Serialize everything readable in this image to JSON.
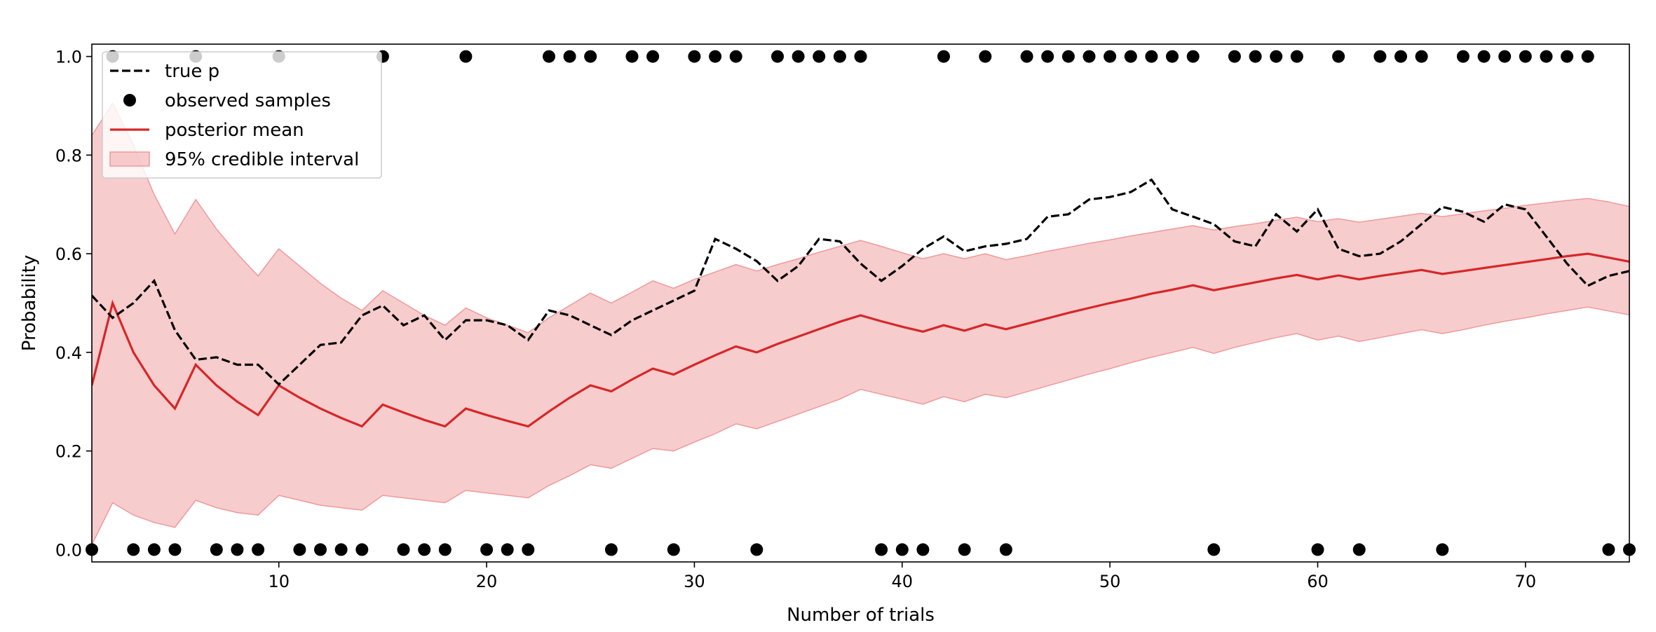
{
  "chart_data": {
    "type": "line",
    "title": "",
    "xlabel": "Number of trials",
    "ylabel": "Probability",
    "xlim": [
      1,
      75
    ],
    "ylim": [
      -0.025,
      1.025
    ],
    "grid": false,
    "legend_placement": "top-left",
    "x_ticks": [
      10,
      20,
      30,
      40,
      50,
      60,
      70
    ],
    "y_ticks": [
      0.0,
      0.2,
      0.4,
      0.6,
      0.8,
      1.0
    ],
    "x_tick_labels": [
      "10",
      "20",
      "30",
      "40",
      "50",
      "60",
      "70"
    ],
    "y_tick_labels": [
      "0.0",
      "0.2",
      "0.4",
      "0.6",
      "0.8",
      "1.0"
    ],
    "legend": [
      {
        "label": "true p",
        "style": "dashed-line",
        "color": "#000000"
      },
      {
        "label": "observed samples",
        "style": "marker",
        "color": "#000000"
      },
      {
        "label": "posterior mean",
        "style": "line",
        "color": "#d62728"
      },
      {
        "label": "95% credible interval",
        "style": "band",
        "color": "#f4b6b8"
      }
    ],
    "series": [
      {
        "name": "true p",
        "color": "#000000",
        "x": [
          1,
          2,
          3,
          4,
          5,
          6,
          7,
          8,
          9,
          10,
          11,
          12,
          13,
          14,
          15,
          16,
          17,
          18,
          19,
          20,
          21,
          22,
          23,
          24,
          25,
          26,
          27,
          28,
          29,
          30,
          31,
          32,
          33,
          34,
          35,
          36,
          37,
          38,
          39,
          40,
          41,
          42,
          43,
          44,
          45,
          46,
          47,
          48,
          49,
          50,
          51,
          52,
          53,
          54,
          55,
          56,
          57,
          58,
          59,
          60,
          61,
          62,
          63,
          64,
          65,
          66,
          67,
          68,
          69,
          70,
          71,
          72,
          73,
          74,
          75
        ],
        "values": [
          0.515,
          0.47,
          0.5,
          0.545,
          0.445,
          0.385,
          0.39,
          0.375,
          0.375,
          0.335,
          0.375,
          0.415,
          0.42,
          0.475,
          0.495,
          0.455,
          0.475,
          0.425,
          0.465,
          0.465,
          0.455,
          0.425,
          0.485,
          0.475,
          0.455,
          0.435,
          0.465,
          0.485,
          0.505,
          0.525,
          0.63,
          0.61,
          0.585,
          0.545,
          0.575,
          0.63,
          0.625,
          0.58,
          0.545,
          0.575,
          0.61,
          0.635,
          0.605,
          0.615,
          0.62,
          0.63,
          0.675,
          0.68,
          0.71,
          0.715,
          0.725,
          0.75,
          0.69,
          0.675,
          0.66,
          0.625,
          0.615,
          0.68,
          0.645,
          0.69,
          0.61,
          0.595,
          0.6,
          0.625,
          0.66,
          0.695,
          0.685,
          0.665,
          0.7,
          0.69,
          0.635,
          0.58,
          0.535,
          0.555,
          0.565
        ]
      },
      {
        "name": "posterior mean",
        "color": "#d62728",
        "x": [
          1,
          2,
          3,
          4,
          5,
          6,
          7,
          8,
          9,
          10,
          11,
          12,
          13,
          14,
          15,
          16,
          17,
          18,
          19,
          20,
          21,
          22,
          23,
          24,
          25,
          26,
          27,
          28,
          29,
          30,
          31,
          32,
          33,
          34,
          35,
          36,
          37,
          38,
          39,
          40,
          41,
          42,
          43,
          44,
          45,
          46,
          47,
          48,
          49,
          50,
          51,
          52,
          53,
          54,
          55,
          56,
          57,
          58,
          59,
          60,
          61,
          62,
          63,
          64,
          65,
          66,
          67,
          68,
          69,
          70,
          71,
          72,
          73,
          74,
          75
        ],
        "values": [
          0.333,
          0.5,
          0.4,
          0.333,
          0.286,
          0.375,
          0.333,
          0.3,
          0.273,
          0.333,
          0.308,
          0.286,
          0.267,
          0.25,
          0.294,
          0.278,
          0.263,
          0.25,
          0.286,
          0.273,
          0.261,
          0.25,
          0.28,
          0.308,
          0.333,
          0.321,
          0.345,
          0.367,
          0.355,
          0.375,
          0.394,
          0.412,
          0.4,
          0.417,
          0.432,
          0.447,
          0.462,
          0.475,
          0.463,
          0.452,
          0.442,
          0.455,
          0.444,
          0.457,
          0.447,
          0.458,
          0.469,
          0.48,
          0.49,
          0.5,
          0.509,
          0.519,
          0.527,
          0.536,
          0.526,
          0.534,
          0.542,
          0.55,
          0.557,
          0.548,
          0.556,
          0.548,
          0.555,
          0.561,
          0.567,
          0.559,
          0.565,
          0.571,
          0.577,
          0.583,
          0.589,
          0.595,
          0.6,
          0.592,
          0.584
        ]
      },
      {
        "name": "95% credible interval",
        "color": "#f4b6b8",
        "x": [
          1,
          2,
          3,
          4,
          5,
          6,
          7,
          8,
          9,
          10,
          11,
          12,
          13,
          14,
          15,
          16,
          17,
          18,
          19,
          20,
          21,
          22,
          23,
          24,
          25,
          26,
          27,
          28,
          29,
          30,
          31,
          32,
          33,
          34,
          35,
          36,
          37,
          38,
          39,
          40,
          41,
          42,
          43,
          44,
          45,
          46,
          47,
          48,
          49,
          50,
          51,
          52,
          53,
          54,
          55,
          56,
          57,
          58,
          59,
          60,
          61,
          62,
          63,
          64,
          65,
          66,
          67,
          68,
          69,
          70,
          71,
          72,
          73,
          74,
          75
        ],
        "lower": [
          0.01,
          0.095,
          0.07,
          0.055,
          0.045,
          0.1,
          0.085,
          0.075,
          0.07,
          0.11,
          0.1,
          0.09,
          0.085,
          0.08,
          0.11,
          0.105,
          0.1,
          0.095,
          0.12,
          0.115,
          0.11,
          0.105,
          0.13,
          0.15,
          0.172,
          0.165,
          0.185,
          0.205,
          0.2,
          0.218,
          0.235,
          0.255,
          0.245,
          0.26,
          0.275,
          0.29,
          0.305,
          0.325,
          0.315,
          0.305,
          0.295,
          0.31,
          0.3,
          0.315,
          0.308,
          0.32,
          0.332,
          0.344,
          0.356,
          0.367,
          0.379,
          0.39,
          0.4,
          0.41,
          0.398,
          0.41,
          0.42,
          0.43,
          0.438,
          0.425,
          0.433,
          0.422,
          0.43,
          0.438,
          0.446,
          0.438,
          0.446,
          0.455,
          0.463,
          0.47,
          0.478,
          0.485,
          0.492,
          0.484,
          0.476
        ],
        "upper": [
          0.84,
          0.905,
          0.82,
          0.72,
          0.64,
          0.71,
          0.65,
          0.6,
          0.555,
          0.61,
          0.575,
          0.54,
          0.51,
          0.485,
          0.525,
          0.5,
          0.475,
          0.455,
          0.49,
          0.47,
          0.455,
          0.44,
          0.47,
          0.495,
          0.52,
          0.5,
          0.522,
          0.545,
          0.53,
          0.548,
          0.563,
          0.578,
          0.565,
          0.578,
          0.59,
          0.603,
          0.615,
          0.627,
          0.615,
          0.602,
          0.59,
          0.6,
          0.59,
          0.6,
          0.588,
          0.596,
          0.605,
          0.613,
          0.621,
          0.628,
          0.636,
          0.643,
          0.65,
          0.657,
          0.648,
          0.655,
          0.661,
          0.668,
          0.674,
          0.665,
          0.671,
          0.664,
          0.67,
          0.676,
          0.682,
          0.675,
          0.681,
          0.687,
          0.692,
          0.698,
          0.703,
          0.708,
          0.712,
          0.705,
          0.696
        ]
      },
      {
        "name": "observed samples",
        "color": "#000000",
        "x": [
          1,
          2,
          3,
          4,
          5,
          6,
          7,
          8,
          9,
          10,
          11,
          12,
          13,
          14,
          15,
          16,
          17,
          18,
          19,
          20,
          21,
          22,
          23,
          24,
          25,
          26,
          27,
          28,
          29,
          30,
          31,
          32,
          33,
          34,
          35,
          36,
          37,
          38,
          39,
          40,
          41,
          42,
          43,
          44,
          45,
          46,
          47,
          48,
          49,
          50,
          51,
          52,
          53,
          54,
          55,
          56,
          57,
          58,
          59,
          60,
          61,
          62,
          63,
          64,
          65,
          66,
          67,
          68,
          69,
          70,
          71,
          72,
          73,
          74,
          75
        ],
        "values": [
          0,
          1,
          0,
          0,
          0,
          1,
          0,
          0,
          0,
          1,
          0,
          0,
          0,
          0,
          1,
          0,
          0,
          0,
          1,
          0,
          0,
          0,
          1,
          1,
          1,
          0,
          1,
          1,
          0,
          1,
          1,
          1,
          0,
          1,
          1,
          1,
          1,
          1,
          0,
          0,
          0,
          1,
          0,
          1,
          0,
          1,
          1,
          1,
          1,
          1,
          1,
          1,
          1,
          1,
          0,
          1,
          1,
          1,
          1,
          0,
          1,
          0,
          1,
          1,
          1,
          0,
          1,
          1,
          1,
          1,
          1,
          1,
          1,
          0,
          0
        ]
      }
    ]
  }
}
